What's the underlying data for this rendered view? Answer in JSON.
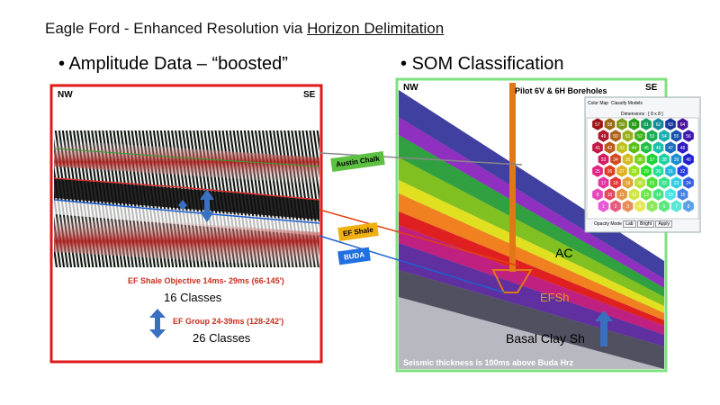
{
  "header": {
    "title": "Eagle Ford - Enhanced Resolution via ",
    "link": "Horizon Delimitation"
  },
  "bullets": {
    "left": "Amplitude Data – “boosted”",
    "right": "SOM Classification"
  },
  "left_panel": {
    "nw": "NW",
    "se": "SE",
    "ef_shale_objective": "EF Shale Objective 14ms- 29ms  (66-145')",
    "classes_16": "16 Classes",
    "ef_group": "EF Group 24-39ms (128-242')",
    "classes_26": "26 Classes"
  },
  "callouts": {
    "austin_chalk": "Austin Chalk",
    "ef_shale": "EF Shale",
    "buda": "BUDA"
  },
  "right_panel": {
    "nw": "NW",
    "se": "SE",
    "boreholes": "Pilot 6V &  6H Boreholes",
    "ac": "AC",
    "efsh": "EFSh",
    "basal_clay": "Basal Clay Sh",
    "thickness_note": "Seismic thickness is 100ms above Buda Hrz"
  },
  "inset": {
    "tabs": [
      "Color Map",
      "Classify Models"
    ],
    "dimensions": "Dimensions : [ 8 x 8 ]",
    "hex_labels": [
      [
        57,
        58,
        59,
        60,
        61,
        62,
        63,
        64
      ],
      [
        49,
        50,
        51,
        52,
        53,
        54,
        55,
        56
      ],
      [
        41,
        42,
        43,
        44,
        45,
        46,
        47,
        48
      ],
      [
        33,
        34,
        35,
        36,
        37,
        38,
        39,
        40
      ],
      [
        25,
        26,
        27,
        28,
        29,
        30,
        31,
        32
      ],
      [
        17,
        18,
        19,
        20,
        21,
        22,
        23,
        24
      ],
      [
        9,
        10,
        11,
        12,
        13,
        14,
        15,
        16
      ],
      [
        1,
        2,
        3,
        4,
        5,
        6,
        7,
        8
      ]
    ],
    "opacity_label": "Opacity Mode",
    "buttons": [
      "Lab",
      "Bright",
      "Apply"
    ]
  }
}
